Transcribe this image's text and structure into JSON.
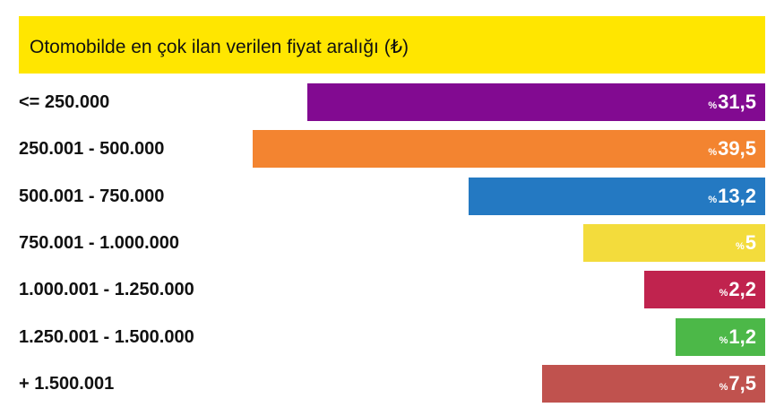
{
  "chart_data": {
    "type": "bar",
    "orientation": "horizontal",
    "title": "Otomobilde en çok ilan verilen fiyat aralığı (₺)",
    "value_prefix": "%",
    "categories": [
      "<= 250.000",
      "250.001 - 500.000",
      "500.001 - 750.000",
      "750.001 - 1.000.000",
      "1.000.001 - 1.250.000",
      "1.250.001 - 1.500.000",
      "+ 1.500.001"
    ],
    "values": [
      31.5,
      39.5,
      13.2,
      5,
      2.2,
      1.2,
      7.5
    ],
    "value_labels": [
      "31,5",
      "39,5",
      "13,2",
      "5",
      "2,2",
      "1,2",
      "7,5"
    ],
    "colors": [
      "#820a91",
      "#f38430",
      "#2479c2",
      "#f3dc3c",
      "#c0234e",
      "#4cb848",
      "#c0524e"
    ],
    "title_bg": "#ffe600"
  }
}
